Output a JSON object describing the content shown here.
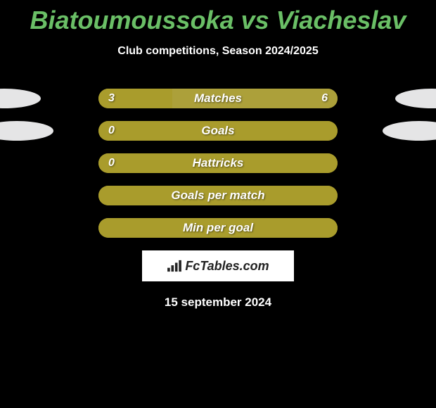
{
  "title": {
    "text": "Biatoumoussoka vs Viacheslav",
    "color": "#6abf66",
    "fontsize": 36
  },
  "subtitle": {
    "text": "Club competitions, Season 2024/2025",
    "color": "#ffffff",
    "fontsize": 16
  },
  "colors": {
    "left_fill": "#a99c2c",
    "right_fill": "#aca03a",
    "track_bg": "#a99c2c",
    "oval": "#e5e5e6",
    "background": "#000000"
  },
  "bar": {
    "track_width": 340,
    "track_height": 28,
    "border_radius": 14
  },
  "rows": [
    {
      "label": "Matches",
      "left_value": "3",
      "right_value": "6",
      "left_pct": 31,
      "right_pct": 69,
      "show_left_oval": true,
      "show_right_oval": true,
      "oval_left_shift": -52,
      "oval_right_shift": 52
    },
    {
      "label": "Goals",
      "left_value": "0",
      "right_value": "",
      "left_pct": 100,
      "right_pct": 0,
      "show_left_oval": true,
      "show_right_oval": true,
      "oval_left_shift": -34,
      "oval_right_shift": 34
    },
    {
      "label": "Hattricks",
      "left_value": "0",
      "right_value": "",
      "left_pct": 100,
      "right_pct": 0,
      "show_left_oval": false,
      "show_right_oval": false,
      "oval_left_shift": 0,
      "oval_right_shift": 0
    },
    {
      "label": "Goals per match",
      "left_value": "",
      "right_value": "",
      "left_pct": 100,
      "right_pct": 0,
      "show_left_oval": false,
      "show_right_oval": false,
      "oval_left_shift": 0,
      "oval_right_shift": 0
    },
    {
      "label": "Min per goal",
      "left_value": "",
      "right_value": "",
      "left_pct": 100,
      "right_pct": 0,
      "show_left_oval": false,
      "show_right_oval": false,
      "oval_left_shift": 0,
      "oval_right_shift": 0
    }
  ],
  "brand": {
    "text": "FcTables.com",
    "box_bg": "#ffffff",
    "text_color": "#222222"
  },
  "date": {
    "text": "15 september 2024",
    "color": "#ffffff"
  }
}
